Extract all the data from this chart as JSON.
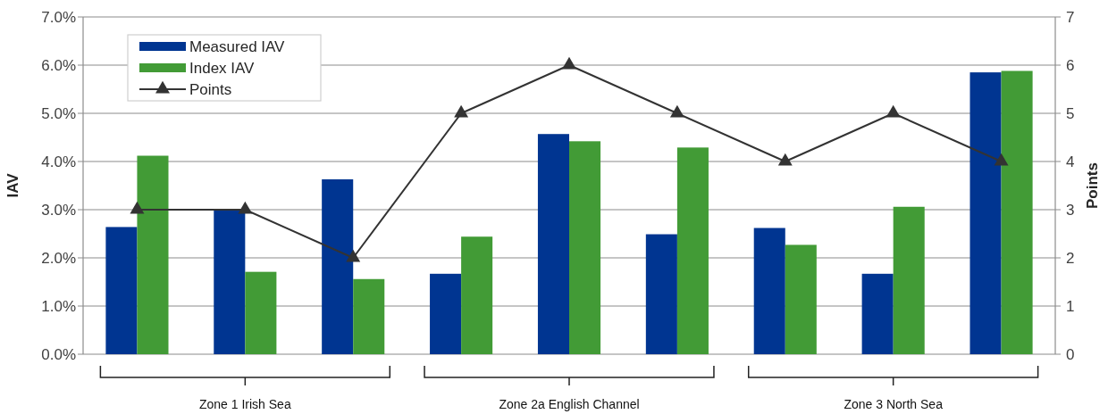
{
  "chart_data": {
    "type": "bar",
    "xlabel": null,
    "ylabel": "IAV",
    "y2label": "Points",
    "categories": [
      null,
      null,
      null,
      null,
      null,
      null,
      null,
      null,
      null
    ],
    "series": [
      {
        "name": "Measured IAV",
        "color": "#003591",
        "values": [
          2.64,
          3.0,
          3.63,
          1.67,
          4.57,
          2.49,
          2.62,
          1.67,
          5.85
        ]
      },
      {
        "name": "Index IAV",
        "color": "#429b36",
        "values": [
          4.12,
          1.71,
          1.56,
          2.44,
          4.42,
          4.29,
          2.27,
          3.06,
          5.88
        ]
      },
      {
        "name": "Points",
        "type": "line",
        "axis": "y2",
        "color": "#333333",
        "marker": "triangle",
        "values": [
          3,
          3,
          2,
          5,
          6,
          5,
          4,
          5,
          4
        ]
      }
    ],
    "ylim": [
      0,
      7
    ],
    "yticks": [
      {
        "value": 0,
        "label": "0.0%"
      },
      {
        "value": 1,
        "label": "1.0%"
      },
      {
        "value": 2,
        "label": "2.0%"
      },
      {
        "value": 3,
        "label": "3.0%"
      },
      {
        "value": 4,
        "label": "4.0%"
      },
      {
        "value": 5,
        "label": "5.0%"
      },
      {
        "value": 6,
        "label": "6.0%"
      },
      {
        "value": 7,
        "label": "7.0%"
      }
    ],
    "y2lim": [
      0,
      7
    ],
    "y2ticks": [
      0,
      1,
      2,
      3,
      4,
      5,
      6,
      7
    ],
    "grid": "y",
    "legend": "top left",
    "annotations": [
      "Zone 1 Irish Sea",
      "Zone 2a English Channel",
      "Zone 3 North Sea"
    ]
  }
}
